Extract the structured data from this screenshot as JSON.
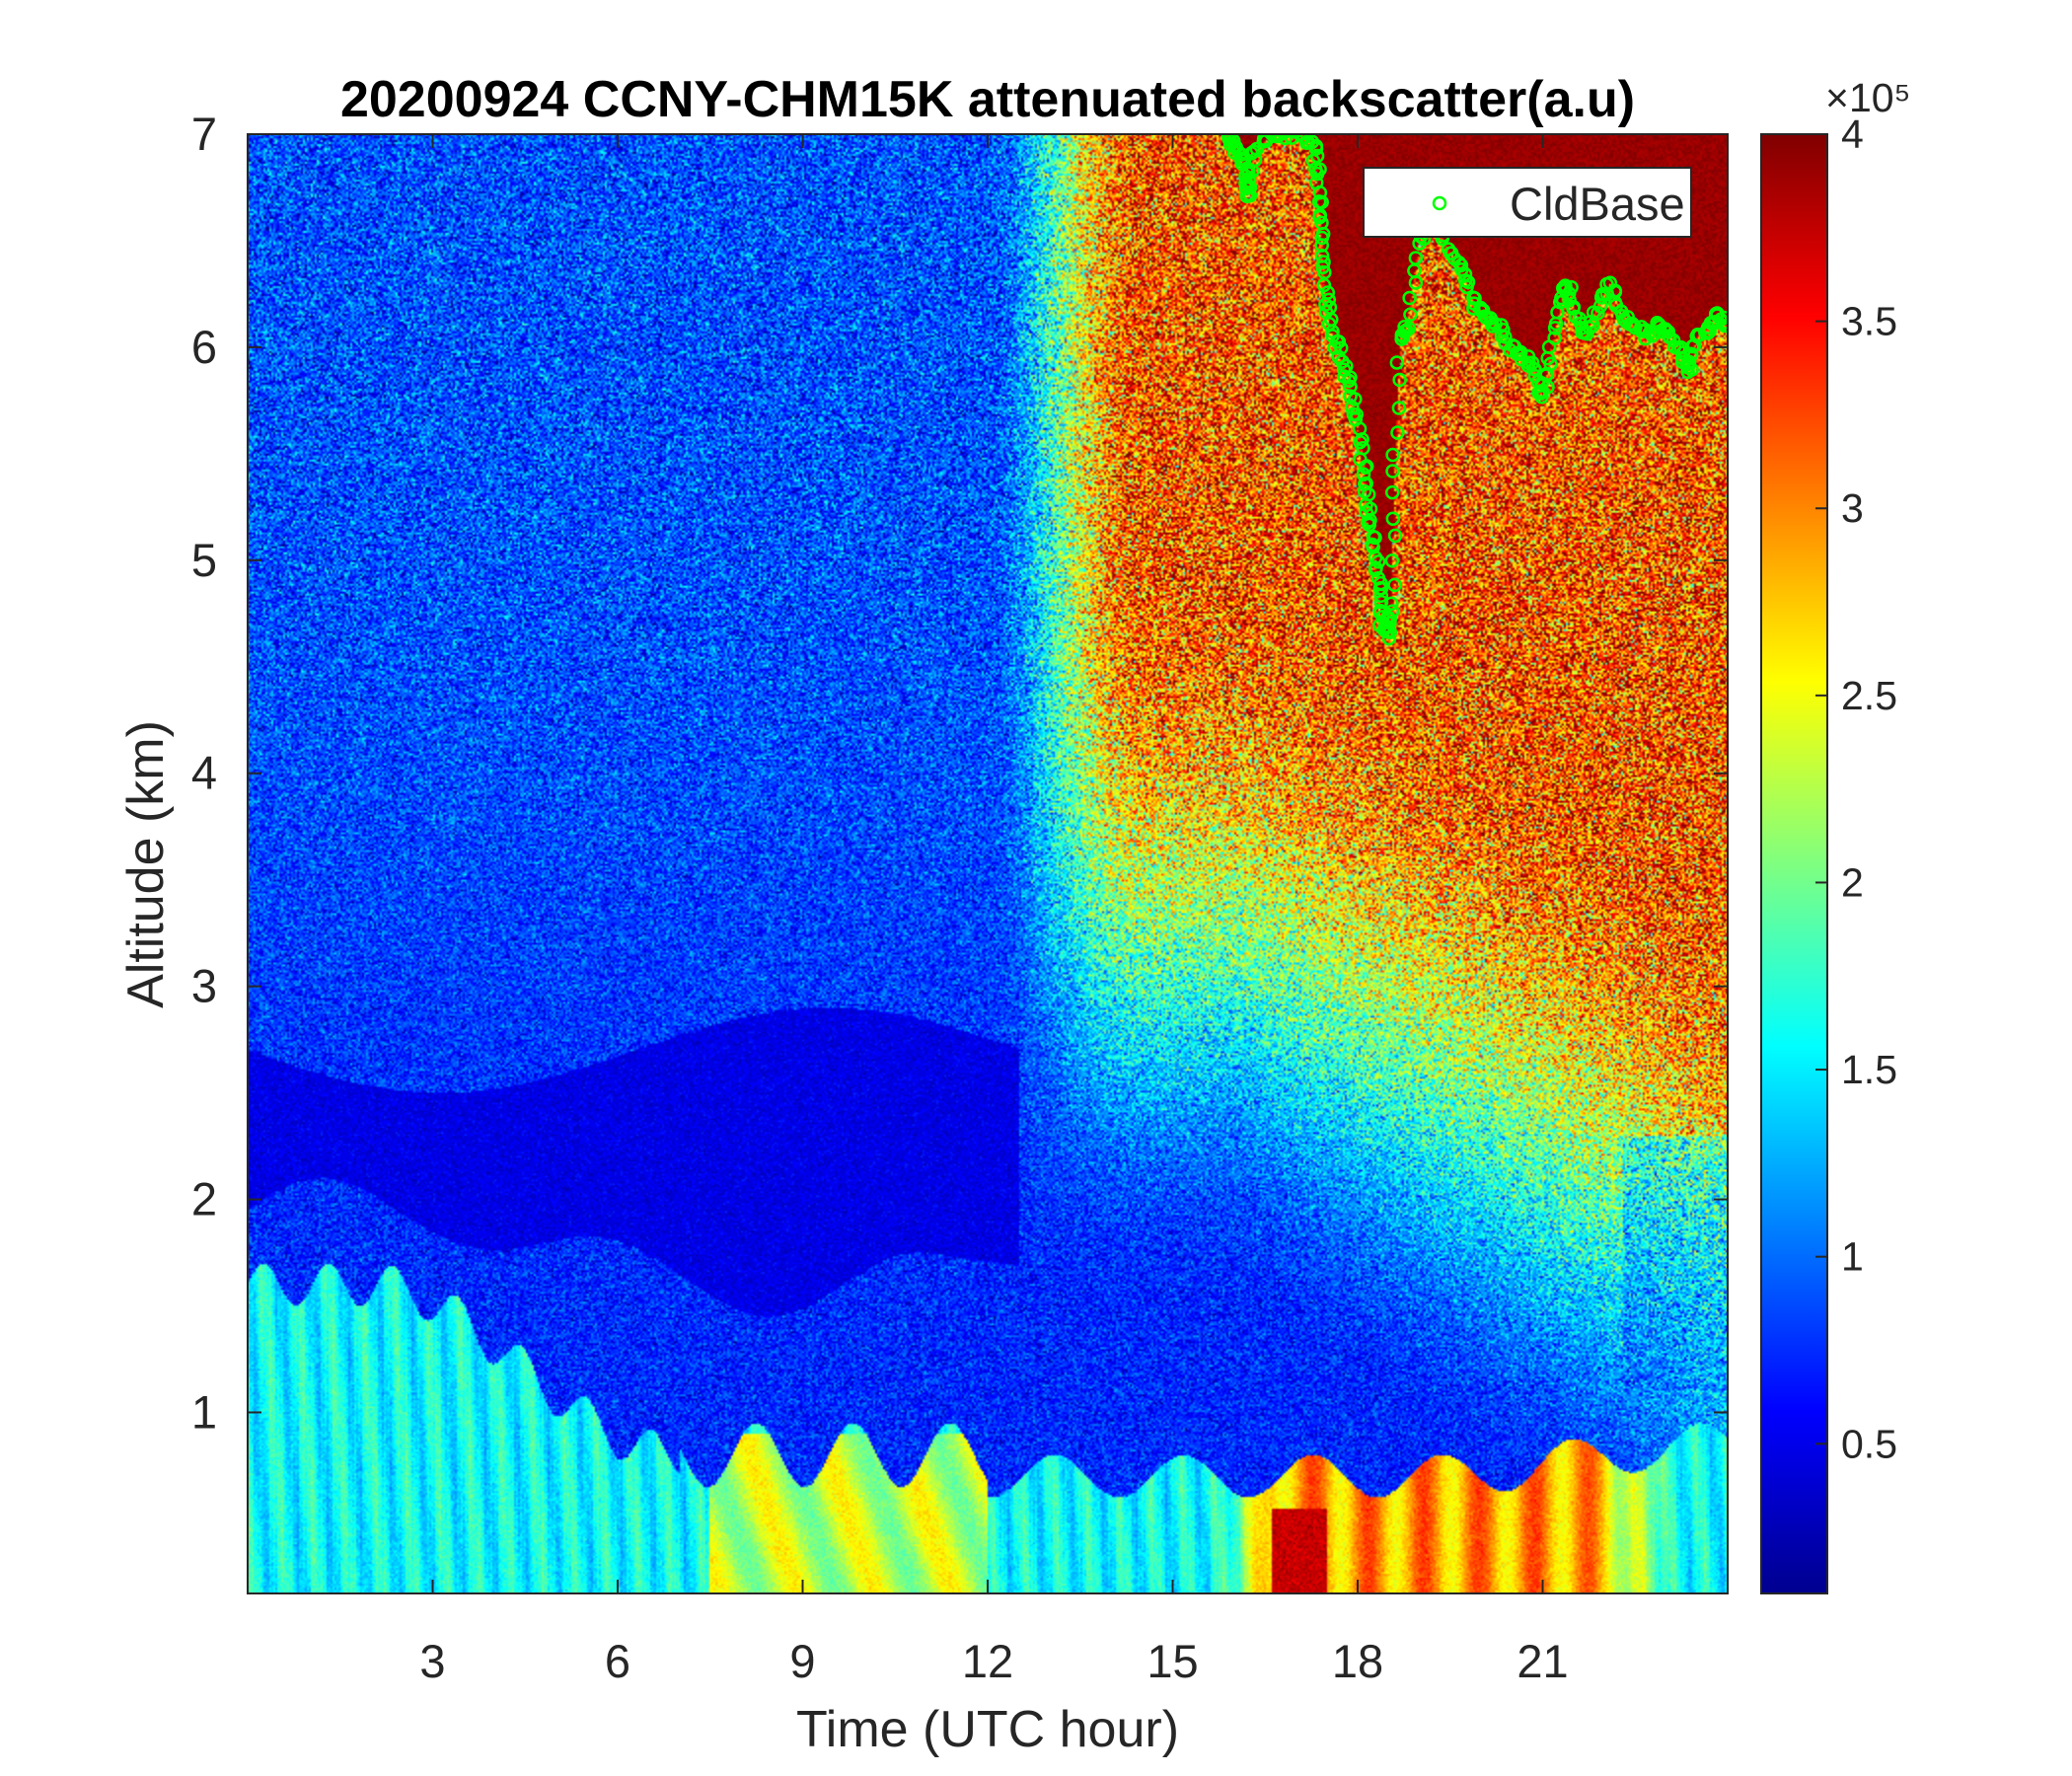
{
  "chart_data": {
    "type": "heatmap",
    "title": "20200924 CCNY-CHM15K attenuated backscatter(a.u)",
    "xlabel": "Time (UTC hour)",
    "ylabel": "Altitude (km)",
    "xlim": [
      0,
      24
    ],
    "ylim": [
      0.15,
      7
    ],
    "x_ticks": [
      3,
      6,
      9,
      12,
      15,
      18,
      21
    ],
    "y_ticks": [
      1,
      2,
      3,
      4,
      5,
      6,
      7
    ],
    "colorbar": {
      "colormap": "jet",
      "clim": [
        10000,
        400000
      ],
      "exponent_label": "×10⁵",
      "ticks": [
        0.5,
        1,
        1.5,
        2,
        2.5,
        3,
        3.5,
        4
      ],
      "tick_labels": [
        "0.5",
        "1",
        "1.5",
        "2",
        "2.5",
        "3",
        "3.5",
        "4"
      ]
    },
    "legend": {
      "position": "top-right",
      "entries": [
        "CldBase"
      ]
    },
    "series": [
      {
        "name": "CldBase",
        "marker": "circle",
        "color": "#00ff00",
        "points": [
          [
            15.9,
            7.0
          ],
          [
            16.0,
            6.95
          ],
          [
            16.1,
            6.9
          ],
          [
            16.2,
            6.8
          ],
          [
            16.25,
            6.7
          ],
          [
            16.3,
            6.9
          ],
          [
            16.6,
            7.0
          ],
          [
            16.8,
            7.0
          ],
          [
            17.1,
            7.0
          ],
          [
            17.3,
            6.95
          ],
          [
            17.35,
            6.8
          ],
          [
            17.4,
            6.6
          ],
          [
            17.45,
            6.4
          ],
          [
            17.5,
            6.2
          ],
          [
            17.6,
            6.05
          ],
          [
            17.75,
            5.95
          ],
          [
            17.9,
            5.8
          ],
          [
            18.0,
            5.65
          ],
          [
            18.1,
            5.45
          ],
          [
            18.15,
            5.3
          ],
          [
            18.2,
            5.15
          ],
          [
            18.3,
            5.0
          ],
          [
            18.35,
            4.85
          ],
          [
            18.4,
            4.7
          ],
          [
            18.5,
            4.65
          ],
          [
            18.55,
            4.8
          ],
          [
            18.6,
            5.4
          ],
          [
            18.7,
            6.05
          ],
          [
            18.8,
            6.1
          ],
          [
            19.0,
            6.5
          ],
          [
            19.2,
            6.6
          ],
          [
            19.5,
            6.45
          ],
          [
            19.7,
            6.35
          ],
          [
            19.9,
            6.2
          ],
          [
            20.1,
            6.15
          ],
          [
            20.3,
            6.1
          ],
          [
            20.5,
            6.0
          ],
          [
            20.7,
            5.95
          ],
          [
            20.9,
            5.9
          ],
          [
            21.0,
            5.75
          ],
          [
            21.1,
            5.95
          ],
          [
            21.3,
            6.2
          ],
          [
            21.4,
            6.3
          ],
          [
            21.55,
            6.15
          ],
          [
            21.7,
            6.05
          ],
          [
            21.9,
            6.2
          ],
          [
            22.1,
            6.3
          ],
          [
            22.3,
            6.15
          ],
          [
            22.5,
            6.1
          ],
          [
            22.7,
            6.05
          ],
          [
            22.9,
            6.1
          ],
          [
            23.1,
            6.05
          ],
          [
            23.3,
            5.95
          ],
          [
            23.4,
            5.9
          ],
          [
            23.5,
            6.05
          ],
          [
            23.7,
            6.1
          ],
          [
            23.85,
            6.15
          ],
          [
            24.0,
            6.1
          ]
        ]
      }
    ]
  }
}
